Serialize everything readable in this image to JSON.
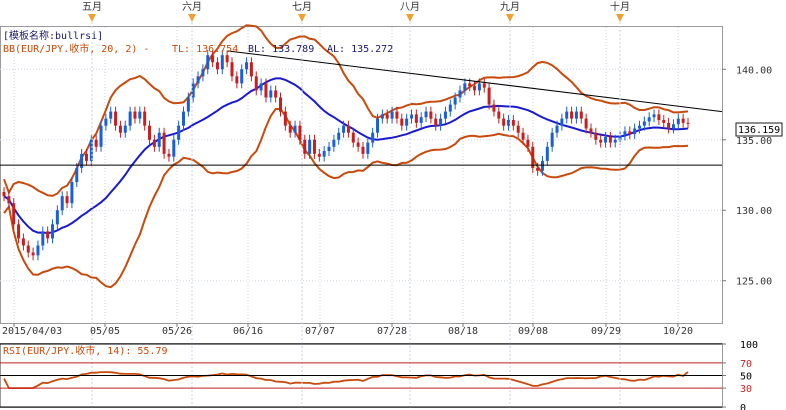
{
  "chart_data": {
    "type": "candlestick",
    "indicator_name": "[模板名称:bullrsi]",
    "bb_label": "BB(EUR/JPY.收市, 20, 2) -",
    "tl": "TL: 136.754",
    "bl": "BL: 133.789",
    "al": "AL: 135.272",
    "current_price": "136.159",
    "month_labels": [
      "五月",
      "六月",
      "七月",
      "八月",
      "九月",
      "十月"
    ],
    "date_labels": [
      "2015/04/03",
      "05/05",
      "05/26",
      "06/16",
      "07/07",
      "07/28",
      "08/18",
      "09/08",
      "09/29",
      "10/20"
    ],
    "price_ticks": [
      "140.00",
      "135.00",
      "130.00",
      "125.00"
    ],
    "price_tick_values": [
      140,
      135,
      130,
      125
    ],
    "ylim": [
      122,
      143
    ],
    "rsi_label": "RSI(EUR/JPY.收市, 14): 55.79",
    "rsi_ticks": [
      "100",
      "70",
      "50",
      "30",
      "0"
    ],
    "rsi_value": 55.79,
    "series": [
      {
        "name": "candles",
        "close": [
          131,
          130.5,
          129,
          128,
          127.5,
          127,
          126.8,
          127.5,
          128.5,
          128,
          129,
          130,
          131,
          130.5,
          132,
          133,
          134,
          133.5,
          135,
          134.5,
          136,
          136.5,
          137,
          136,
          135.5,
          136,
          137,
          136.5,
          137,
          136,
          135,
          134.5,
          135.5,
          134,
          133.8,
          135,
          136,
          137,
          138,
          139,
          139.5,
          140,
          141,
          140.5,
          140,
          141,
          140.5,
          139.5,
          139,
          140,
          140.5,
          139.5,
          138.5,
          139,
          138,
          138.5,
          138,
          137,
          136,
          135.5,
          136,
          135,
          134,
          135,
          134,
          133.8,
          134.2,
          134.5,
          135,
          135.5,
          136,
          135.5,
          134.8,
          134.5,
          134,
          134.8,
          135.5,
          136.5,
          136.8,
          136.5,
          137,
          136.5,
          136,
          136.5,
          136.8,
          136.2,
          136.6,
          137,
          136.5,
          136,
          136.5,
          137,
          137.5,
          138,
          138.5,
          139,
          138.8,
          138.5,
          139,
          138.7,
          137.5,
          137,
          136.5,
          136,
          136.4,
          136,
          135.5,
          135,
          134.5,
          133,
          132.8,
          133.5,
          134.5,
          135.5,
          136,
          136.5,
          137,
          136.5,
          137,
          136.5,
          135.8,
          135.5,
          135,
          134.8,
          135.2,
          134.8,
          135,
          135.3,
          135.6,
          135.4,
          135.8,
          136,
          136.3,
          136.6,
          136.8,
          136.4,
          136.2,
          135.8,
          136.1,
          136.5,
          136.2,
          136.159
        ]
      },
      {
        "name": "bb_upper"
      },
      {
        "name": "bb_middle"
      },
      {
        "name": "bb_lower"
      }
    ],
    "trendlines": [
      {
        "type": "line",
        "from": [
          "05/31",
          141.3
        ],
        "to": [
          "10/20",
          137.0
        ]
      },
      {
        "type": "hline",
        "value": 133.2
      }
    ]
  }
}
